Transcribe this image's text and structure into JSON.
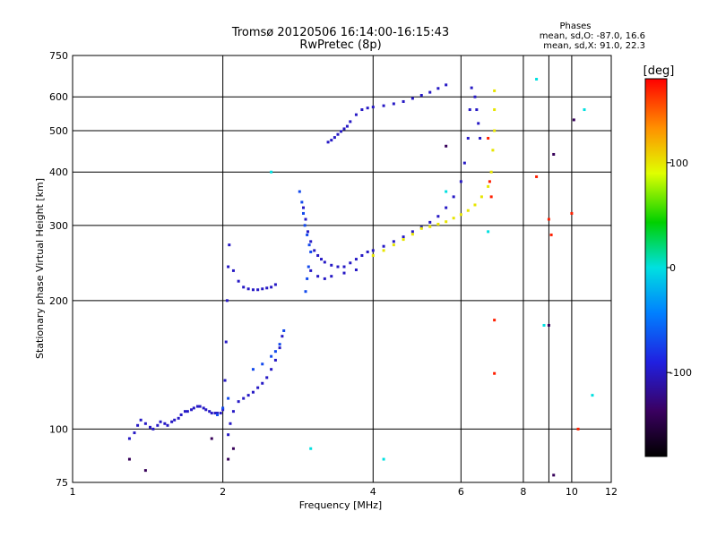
{
  "chart_data": {
    "type": "scatter",
    "title": "Tromsø 20120506 16:14:00-16:15:43",
    "subtitle": "RwPretec (8p)",
    "xlabel": "Frequency [MHz]",
    "ylabel": "Stationary phase Virtual Height [km]",
    "x_scale": "log",
    "y_scale": "log",
    "xlim": [
      1,
      12
    ],
    "ylim": [
      75,
      750
    ],
    "x_ticks": [
      1,
      2,
      4,
      6,
      8,
      10,
      12
    ],
    "y_ticks": [
      75,
      100,
      200,
      300,
      400,
      500,
      600,
      750
    ],
    "x_grid": [
      2,
      4,
      6,
      8,
      9,
      10
    ],
    "y_grid": [
      100,
      200,
      300,
      400,
      500,
      600
    ],
    "phase_info": {
      "title": "Phases",
      "line1": "mean, sd,O: -87.0, 16.6",
      "line2": "mean, sd,X:  91.0, 22.3"
    },
    "colorbar": {
      "label": "[deg]",
      "min": -180,
      "max": 180,
      "ticks": [
        100,
        0,
        -100
      ]
    },
    "series": [
      {
        "phase": -100,
        "points": [
          [
            1.3,
            95
          ],
          [
            1.33,
            98
          ],
          [
            1.35,
            102
          ],
          [
            1.37,
            105
          ],
          [
            1.4,
            103
          ],
          [
            1.43,
            101
          ],
          [
            1.45,
            100
          ],
          [
            1.48,
            102
          ],
          [
            1.5,
            104
          ],
          [
            1.53,
            103
          ],
          [
            1.55,
            102
          ],
          [
            1.58,
            104
          ],
          [
            1.6,
            105
          ],
          [
            1.63,
            106
          ],
          [
            1.65,
            108
          ],
          [
            1.68,
            110
          ],
          [
            1.7,
            110
          ],
          [
            1.73,
            111
          ],
          [
            1.75,
            112
          ],
          [
            1.78,
            113
          ],
          [
            1.8,
            113
          ],
          [
            1.83,
            112
          ],
          [
            1.85,
            111
          ],
          [
            1.88,
            110
          ],
          [
            1.9,
            109
          ],
          [
            1.93,
            109
          ],
          [
            1.95,
            109
          ],
          [
            1.98,
            109
          ],
          [
            2.0,
            111
          ],
          [
            2.02,
            130
          ],
          [
            2.03,
            160
          ],
          [
            2.04,
            200
          ],
          [
            2.05,
            240
          ],
          [
            2.06,
            270
          ],
          [
            2.1,
            235
          ],
          [
            2.15,
            222
          ],
          [
            2.2,
            215
          ],
          [
            2.25,
            213
          ],
          [
            2.3,
            212
          ],
          [
            2.35,
            212
          ],
          [
            2.4,
            213
          ],
          [
            2.45,
            214
          ],
          [
            2.5,
            215
          ],
          [
            2.55,
            218
          ],
          [
            2.05,
            97
          ],
          [
            2.07,
            103
          ],
          [
            2.1,
            110
          ],
          [
            2.15,
            116
          ],
          [
            2.2,
            118
          ],
          [
            2.25,
            120
          ],
          [
            2.3,
            122
          ],
          [
            2.35,
            125
          ],
          [
            2.4,
            128
          ],
          [
            2.45,
            132
          ],
          [
            2.5,
            138
          ],
          [
            2.55,
            145
          ],
          [
            2.6,
            155
          ],
          [
            2.63,
            165
          ],
          [
            2.9,
            330
          ],
          [
            2.93,
            310
          ],
          [
            2.96,
            290
          ],
          [
            3.0,
            275
          ],
          [
            3.05,
            262
          ],
          [
            3.1,
            255
          ],
          [
            3.15,
            250
          ],
          [
            3.2,
            246
          ],
          [
            3.3,
            242
          ],
          [
            3.4,
            240
          ],
          [
            3.5,
            240
          ],
          [
            3.6,
            245
          ],
          [
            3.7,
            250
          ],
          [
            3.8,
            255
          ],
          [
            3.9,
            260
          ],
          [
            4.0,
            262
          ],
          [
            4.2,
            268
          ],
          [
            4.4,
            275
          ],
          [
            4.6,
            282
          ],
          [
            4.8,
            290
          ],
          [
            5.0,
            297
          ],
          [
            5.2,
            305
          ],
          [
            5.4,
            315
          ],
          [
            5.6,
            330
          ],
          [
            5.8,
            350
          ],
          [
            6.0,
            380
          ],
          [
            6.1,
            420
          ],
          [
            6.2,
            480
          ],
          [
            6.25,
            560
          ],
          [
            6.3,
            630
          ],
          [
            3.0,
            235
          ],
          [
            3.1,
            228
          ],
          [
            3.2,
            225
          ],
          [
            3.3,
            228
          ],
          [
            3.5,
            232
          ],
          [
            3.7,
            236
          ],
          [
            3.25,
            470
          ],
          [
            3.3,
            475
          ],
          [
            3.35,
            482
          ],
          [
            3.4,
            490
          ],
          [
            3.45,
            498
          ],
          [
            3.5,
            505
          ],
          [
            3.55,
            512
          ],
          [
            3.6,
            525
          ],
          [
            3.7,
            545
          ],
          [
            3.8,
            560
          ],
          [
            3.9,
            565
          ],
          [
            4.0,
            568
          ],
          [
            4.2,
            572
          ],
          [
            4.4,
            578
          ],
          [
            4.6,
            585
          ],
          [
            4.8,
            595
          ],
          [
            5.0,
            605
          ],
          [
            5.2,
            615
          ],
          [
            5.4,
            628
          ],
          [
            5.6,
            640
          ],
          [
            6.4,
            600
          ],
          [
            6.45,
            560
          ],
          [
            6.5,
            520
          ],
          [
            6.55,
            480
          ]
        ]
      },
      {
        "phase": -70,
        "points": [
          [
            2.85,
            360
          ],
          [
            2.88,
            340
          ],
          [
            2.9,
            320
          ],
          [
            2.92,
            300
          ],
          [
            2.95,
            285
          ],
          [
            2.98,
            270
          ],
          [
            3.0,
            260
          ],
          [
            2.97,
            240
          ],
          [
            2.95,
            225
          ],
          [
            2.93,
            210
          ],
          [
            2.3,
            138
          ],
          [
            2.4,
            142
          ],
          [
            2.5,
            148
          ],
          [
            2.55,
            152
          ],
          [
            2.6,
            158
          ],
          [
            2.65,
            170
          ],
          [
            1.95,
            108
          ],
          [
            2.0,
            112
          ],
          [
            2.05,
            118
          ]
        ]
      },
      {
        "phase": 100,
        "points": [
          [
            4.0,
            255
          ],
          [
            4.2,
            262
          ],
          [
            4.4,
            270
          ],
          [
            4.6,
            278
          ],
          [
            4.8,
            286
          ],
          [
            5.0,
            295
          ],
          [
            5.2,
            298
          ],
          [
            5.4,
            302
          ],
          [
            5.6,
            306
          ],
          [
            5.8,
            312
          ],
          [
            6.0,
            318
          ],
          [
            6.2,
            325
          ],
          [
            6.4,
            335
          ],
          [
            6.6,
            350
          ],
          [
            6.8,
            370
          ],
          [
            6.9,
            400
          ],
          [
            6.95,
            450
          ],
          [
            7.0,
            500
          ],
          [
            7.0,
            560
          ],
          [
            7.0,
            620
          ]
        ]
      },
      {
        "phase": 170,
        "points": [
          [
            6.8,
            480
          ],
          [
            6.85,
            380
          ],
          [
            6.9,
            350
          ],
          [
            7.0,
            180
          ],
          [
            8.5,
            390
          ],
          [
            9.0,
            310
          ],
          [
            9.1,
            285
          ],
          [
            10.0,
            320
          ],
          [
            10.3,
            100
          ],
          [
            7.0,
            135
          ]
        ]
      },
      {
        "phase": 0,
        "points": [
          [
            3.0,
            90
          ],
          [
            4.2,
            85
          ],
          [
            2.5,
            400
          ],
          [
            5.6,
            360
          ],
          [
            6.8,
            290
          ],
          [
            8.5,
            660
          ],
          [
            10.6,
            560
          ],
          [
            8.8,
            175
          ],
          [
            11.0,
            120
          ]
        ]
      },
      {
        "phase": -140,
        "points": [
          [
            1.3,
            85
          ],
          [
            1.4,
            80
          ],
          [
            1.9,
            95
          ],
          [
            2.1,
            90
          ],
          [
            2.05,
            85
          ],
          [
            5.6,
            460
          ],
          [
            10.1,
            530
          ],
          [
            9.2,
            78
          ],
          [
            9.2,
            440
          ],
          [
            9.0,
            175
          ]
        ]
      }
    ]
  }
}
